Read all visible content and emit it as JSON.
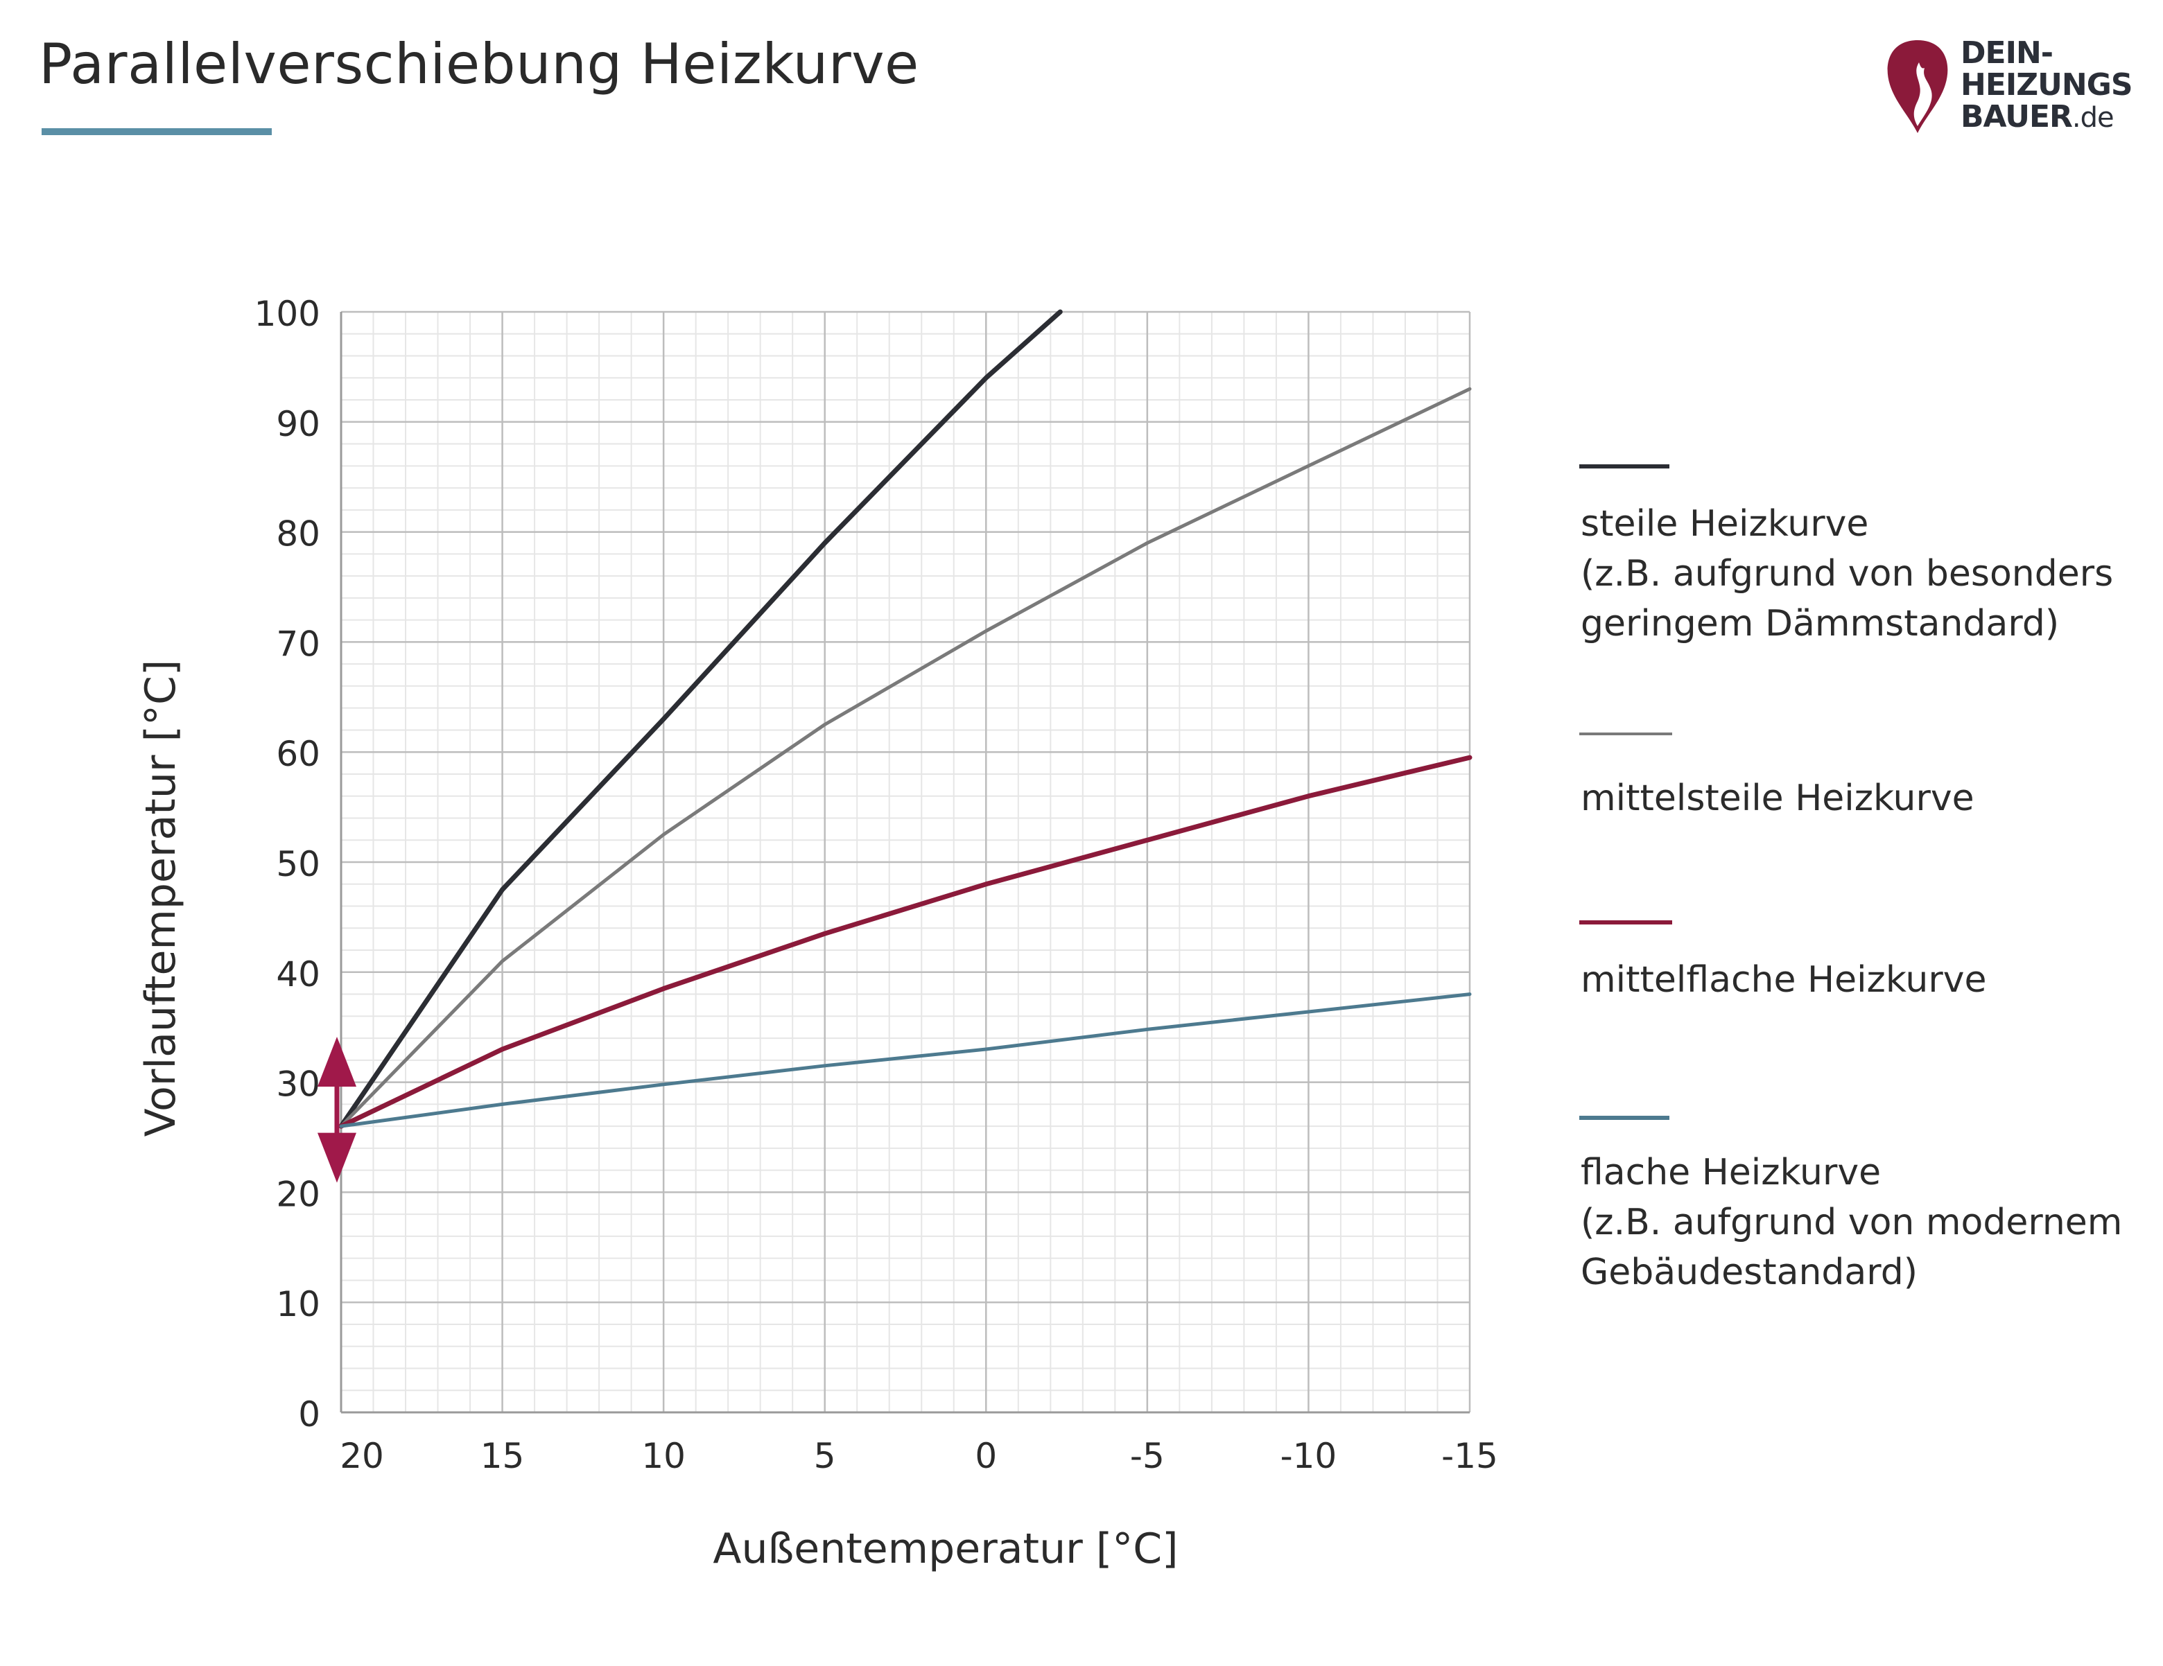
{
  "title": "Parallelverschiebung Heizkurve",
  "logo": {
    "line1": "DEIN-",
    "line2": "HEIZUNGS",
    "line3": "BAUER",
    "suffix": ".de",
    "flame_color": "#8b1a3a"
  },
  "chart_data": {
    "type": "line",
    "xlabel": "Außentemperatur [°C]",
    "ylabel": "Vorlauftemperatur [°C]",
    "xlim": [
      20,
      -15
    ],
    "ylim": [
      0,
      100
    ],
    "x_ticks": [
      "20",
      "15",
      "10",
      "5",
      "0",
      "-5",
      "-10",
      "-15"
    ],
    "x_tick_values": [
      20,
      15,
      10,
      5,
      0,
      -5,
      -10,
      -15
    ],
    "y_ticks": [
      "0",
      "10",
      "20",
      "30",
      "40",
      "50",
      "60",
      "70",
      "80",
      "90",
      "100"
    ],
    "y_tick_values": [
      0,
      10,
      20,
      30,
      40,
      50,
      60,
      70,
      80,
      90,
      100
    ],
    "grid": true,
    "legend_position": "right",
    "series": [
      {
        "name": "steile Heizkurve",
        "note_line1": "(z.B. aufgrund von besonders",
        "note_line2": "geringem Dämmstandard)",
        "color": "#2b2d33",
        "x": [
          20,
          15,
          10,
          5,
          0,
          -2.3
        ],
        "y": [
          26,
          47.5,
          63,
          79,
          94,
          100
        ]
      },
      {
        "name": "mittelsteile Heizkurve",
        "note_line1": "",
        "note_line2": "",
        "color": "#7a7a7a",
        "x": [
          20,
          15,
          10,
          5,
          0,
          -5,
          -10,
          -15
        ],
        "y": [
          26,
          41,
          52.5,
          62.5,
          71,
          79,
          86,
          93
        ]
      },
      {
        "name": "mittelflache Heizkurve",
        "note_line1": "",
        "note_line2": "",
        "color": "#8b1a3a",
        "x": [
          20,
          15,
          10,
          5,
          0,
          -5,
          -10,
          -15
        ],
        "y": [
          26,
          33,
          38.5,
          43.5,
          48,
          52,
          56,
          59.5
        ]
      },
      {
        "name": "flache Heizkurve",
        "note_line1": "(z.B. aufgrund von modernem",
        "note_line2": "Gebäudestandard)",
        "color": "#4d7a8f",
        "x": [
          20,
          15,
          10,
          5,
          0,
          -5,
          -10,
          -15
        ],
        "y": [
          26,
          28,
          29.8,
          31.5,
          33,
          34.8,
          36.4,
          38
        ]
      }
    ],
    "annotation": {
      "type": "double-arrow",
      "x": 20,
      "y_from": 21.5,
      "y_to": 33.5,
      "color": "#a0194a"
    }
  }
}
